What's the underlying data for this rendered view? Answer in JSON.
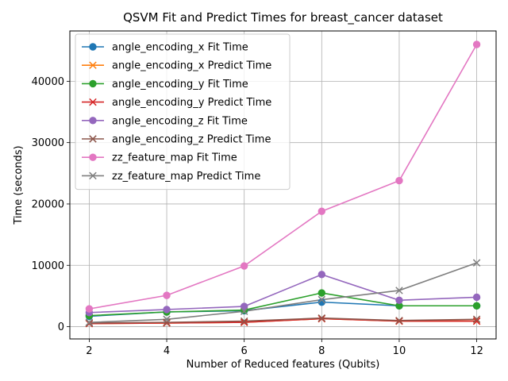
{
  "chart_data": {
    "type": "line",
    "title": "QSVM Fit and Predict Times for breast_cancer dataset",
    "xlabel": "Number of Reduced features (Qubits)",
    "ylabel": "Time (seconds)",
    "x": [
      2,
      4,
      6,
      8,
      10,
      12
    ],
    "xlim": [
      1.5,
      12.5
    ],
    "ylim": [
      -2000,
      48200
    ],
    "xticks": [
      2,
      4,
      6,
      8,
      10,
      12
    ],
    "yticks": [
      0,
      10000,
      20000,
      30000,
      40000
    ],
    "grid": true,
    "legend_position": "top-left",
    "series": [
      {
        "name": "angle_encoding_x Fit Time",
        "color": "#1f77b4",
        "marker": "circle",
        "values": [
          1700,
          2400,
          2600,
          4000,
          3400,
          3400
        ]
      },
      {
        "name": "angle_encoding_x Predict Time",
        "color": "#ff7f0e",
        "marker": "x",
        "values": [
          500,
          600,
          700,
          1300,
          900,
          900
        ]
      },
      {
        "name": "angle_encoding_y Fit Time",
        "color": "#2ca02c",
        "marker": "circle",
        "values": [
          1800,
          2400,
          2700,
          5500,
          3400,
          3400
        ]
      },
      {
        "name": "angle_encoding_y Predict Time",
        "color": "#d62728",
        "marker": "x",
        "values": [
          500,
          600,
          700,
          1300,
          900,
          900
        ]
      },
      {
        "name": "angle_encoding_z Fit Time",
        "color": "#9467bd",
        "marker": "circle",
        "values": [
          2300,
          2800,
          3300,
          8500,
          4300,
          4800
        ]
      },
      {
        "name": "angle_encoding_z Predict Time",
        "color": "#8c564b",
        "marker": "x",
        "values": [
          600,
          700,
          900,
          1400,
          1000,
          1200
        ]
      },
      {
        "name": "zz_feature_map Fit Time",
        "color": "#e377c2",
        "marker": "circle",
        "values": [
          2900,
          5100,
          9900,
          18800,
          23800,
          46000
        ]
      },
      {
        "name": "zz_feature_map Predict Time",
        "color": "#7f7f7f",
        "marker": "x",
        "values": [
          700,
          1200,
          2500,
          4400,
          5900,
          10400
        ]
      }
    ]
  }
}
